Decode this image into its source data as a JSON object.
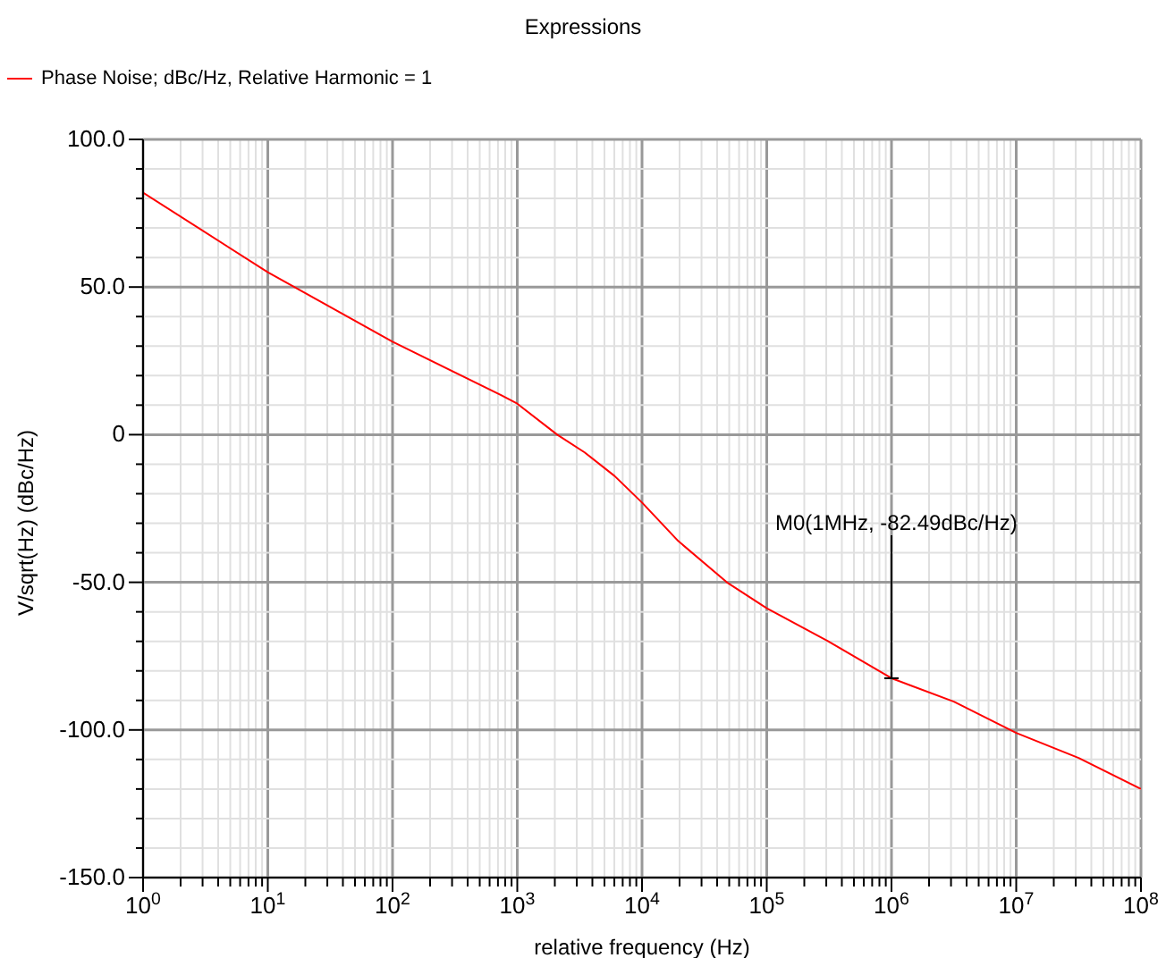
{
  "chart_data": {
    "type": "line",
    "title": "Expressions",
    "xlabel": "relative frequency (Hz)",
    "ylabel": "V/sqrt(Hz) (dBc/Hz)",
    "log": "x",
    "grid": true,
    "legend": "top left",
    "marker": "none",
    "line_style": "solid",
    "x": [
      1,
      10,
      100,
      741,
      1000,
      2089,
      3467,
      6026,
      10000,
      19498,
      47863,
      100000,
      309030,
      1000000,
      3162278,
      10000000,
      31622777,
      100000000
    ],
    "series": [
      {
        "name": "Phase Noise; dBc/Hz, Relative Harmonic = 1",
        "color": "#ff0000",
        "values": [
          82,
          55,
          31.5,
          13.4,
          10.5,
          0,
          -6,
          -14,
          -23,
          -36,
          -50,
          -58.8,
          -69.9,
          -82.49,
          -90.4,
          -101,
          -109.5,
          -120
        ]
      }
    ],
    "xlim": [
      1,
      100000000
    ],
    "ylim": [
      -150,
      100
    ],
    "xticks": [
      {
        "value": 1,
        "label": "10$^{0}$"
      },
      {
        "value": 2,
        "label": null
      },
      {
        "value": 3,
        "label": null
      },
      {
        "value": 4,
        "label": null
      },
      {
        "value": 5,
        "label": null
      },
      {
        "value": 6,
        "label": null
      },
      {
        "value": 7,
        "label": null
      },
      {
        "value": 8,
        "label": null
      },
      {
        "value": 9,
        "label": null
      },
      {
        "value": 10,
        "label": "10$^{1}$"
      },
      {
        "value": 20,
        "label": null
      },
      {
        "value": 30,
        "label": null
      },
      {
        "value": 40,
        "label": null
      },
      {
        "value": 50,
        "label": null
      },
      {
        "value": 60,
        "label": null
      },
      {
        "value": 70,
        "label": null
      },
      {
        "value": 80,
        "label": null
      },
      {
        "value": 90,
        "label": null
      },
      {
        "value": 100,
        "label": "10$^{2}$"
      },
      {
        "value": 200,
        "label": null
      },
      {
        "value": 300,
        "label": null
      },
      {
        "value": 400,
        "label": null
      },
      {
        "value": 500,
        "label": null
      },
      {
        "value": 600,
        "label": null
      },
      {
        "value": 700,
        "label": null
      },
      {
        "value": 800,
        "label": null
      },
      {
        "value": 900,
        "label": null
      },
      {
        "value": 1000,
        "label": "10$^{3}$"
      },
      {
        "value": 2000,
        "label": null
      },
      {
        "value": 3000,
        "label": null
      },
      {
        "value": 4000,
        "label": null
      },
      {
        "value": 5000,
        "label": null
      },
      {
        "value": 6000,
        "label": null
      },
      {
        "value": 7000,
        "label": null
      },
      {
        "value": 8000,
        "label": null
      },
      {
        "value": 9000,
        "label": null
      },
      {
        "value": 10000,
        "label": "10$^{4}$"
      },
      {
        "value": 20000,
        "label": null
      },
      {
        "value": 30000,
        "label": null
      },
      {
        "value": 40000,
        "label": null
      },
      {
        "value": 50000,
        "label": null
      },
      {
        "value": 60000,
        "label": null
      },
      {
        "value": 70000,
        "label": null
      },
      {
        "value": 80000,
        "label": null
      },
      {
        "value": 90000,
        "label": null
      },
      {
        "value": 100000,
        "label": "10$^{5}$"
      },
      {
        "value": 200000,
        "label": null
      },
      {
        "value": 300000,
        "label": null
      },
      {
        "value": 400000,
        "label": null
      },
      {
        "value": 500000,
        "label": null
      },
      {
        "value": 600000,
        "label": null
      },
      {
        "value": 700000,
        "label": null
      },
      {
        "value": 800000,
        "label": null
      },
      {
        "value": 900000,
        "label": null
      },
      {
        "value": 1000000,
        "label": "10$^{6}$"
      },
      {
        "value": 2000000,
        "label": null
      },
      {
        "value": 3000000,
        "label": null
      },
      {
        "value": 4000000,
        "label": null
      },
      {
        "value": 5000000,
        "label": null
      },
      {
        "value": 6000000,
        "label": null
      },
      {
        "value": 7000000,
        "label": null
      },
      {
        "value": 8000000,
        "label": null
      },
      {
        "value": 9000000,
        "label": null
      },
      {
        "value": 10000000,
        "label": "10$^{7}$"
      },
      {
        "value": 20000000,
        "label": null
      },
      {
        "value": 30000000,
        "label": null
      },
      {
        "value": 40000000,
        "label": null
      },
      {
        "value": 50000000,
        "label": null
      },
      {
        "value": 60000000,
        "label": null
      },
      {
        "value": 70000000,
        "label": null
      },
      {
        "value": 80000000,
        "label": null
      },
      {
        "value": 90000000,
        "label": null
      },
      {
        "value": 100000000,
        "label": "10$^{8}$"
      }
    ],
    "yticks": [
      {
        "value": -150,
        "label": "-150.0"
      },
      {
        "value": -140,
        "label": null
      },
      {
        "value": -130,
        "label": null
      },
      {
        "value": -120,
        "label": null
      },
      {
        "value": -110,
        "label": null
      },
      {
        "value": -100,
        "label": "-100.0"
      },
      {
        "value": -90,
        "label": null
      },
      {
        "value": -80,
        "label": null
      },
      {
        "value": -70,
        "label": null
      },
      {
        "value": -60,
        "label": null
      },
      {
        "value": -50,
        "label": "-50.0"
      },
      {
        "value": -40,
        "label": null
      },
      {
        "value": -30,
        "label": null
      },
      {
        "value": -20,
        "label": null
      },
      {
        "value": -10,
        "label": null
      },
      {
        "value": 0,
        "label": "0"
      },
      {
        "value": 10,
        "label": null
      },
      {
        "value": 20,
        "label": null
      },
      {
        "value": 30,
        "label": null
      },
      {
        "value": 40,
        "label": null
      },
      {
        "value": 50,
        "label": "50.0"
      },
      {
        "value": 60,
        "label": null
      },
      {
        "value": 70,
        "label": null
      },
      {
        "value": 80,
        "label": null
      },
      {
        "value": 90,
        "label": null
      },
      {
        "value": 100,
        "label": "100.0"
      }
    ],
    "annotations": [
      {
        "text": "M0(1MHz, -82.49dBc/Hz)",
        "x": 1000000,
        "y": -82.49
      }
    ]
  }
}
